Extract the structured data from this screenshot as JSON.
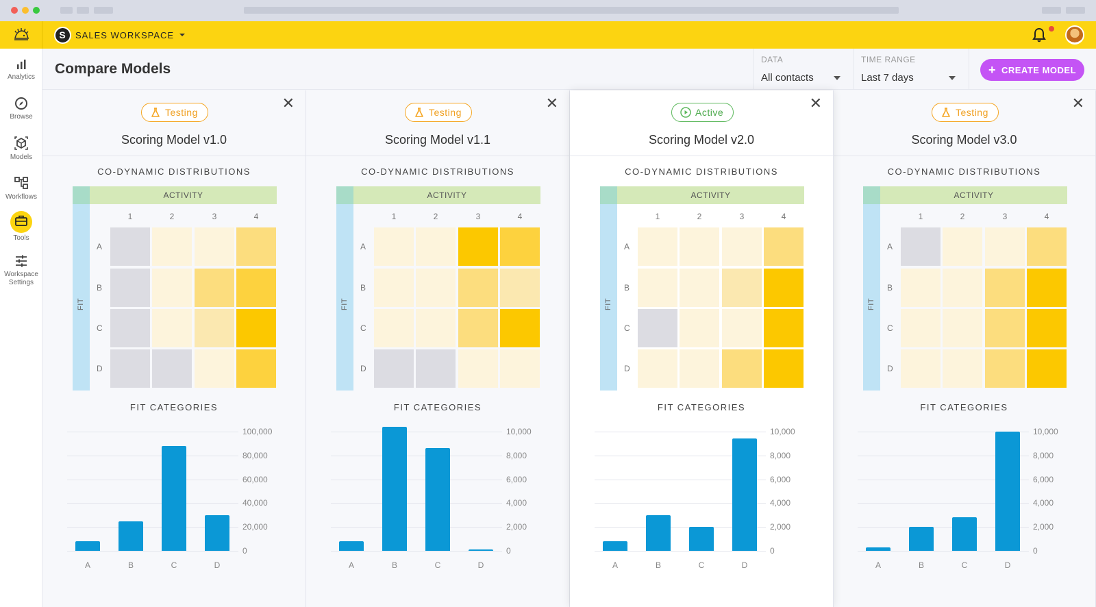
{
  "workspace": {
    "label": "SALES WORKSPACE",
    "badge_letter": "S"
  },
  "sidebar": {
    "items": [
      {
        "label": "Analytics",
        "icon": "bar-chart-icon"
      },
      {
        "label": "Browse",
        "icon": "compass-icon"
      },
      {
        "label": "Models",
        "icon": "cube-icon"
      },
      {
        "label": "Workflows",
        "icon": "workflow-icon"
      },
      {
        "label": "Tools",
        "icon": "toolbox-icon"
      },
      {
        "label": "Workspace Settings",
        "icon": "sliders-icon"
      }
    ]
  },
  "page": {
    "title": "Compare Models"
  },
  "filters": {
    "data": {
      "label": "DATA",
      "value": "All contacts"
    },
    "time_range": {
      "label": "TIME RANGE",
      "value": "Last 7 days"
    }
  },
  "actions": {
    "create_label": "CREATE MODEL"
  },
  "labels": {
    "distributions": "CO-DYNAMIC DISTRIBUTIONS",
    "fit_categories": "FIT CATEGORIES",
    "activity": "ACTIVITY",
    "fit": "FIT",
    "columns": [
      "1",
      "2",
      "3",
      "4"
    ],
    "rows": [
      "A",
      "B",
      "C",
      "D"
    ],
    "close": "✕"
  },
  "colors": {
    "accent": "#fcd411",
    "create_button": "#c454f5",
    "bar": "#0b98d6",
    "testing": "#f5a623",
    "active": "#5cb85c",
    "heat_levels": [
      "#dcdce2",
      "#fdf4dc",
      "#fbe8b0",
      "#fcdd7e",
      "#fdd23e",
      "#fcc800"
    ]
  },
  "models": [
    {
      "status": "Testing",
      "status_type": "testing",
      "name": "Scoring Model v1.0",
      "heatmap": [
        [
          0,
          1,
          1,
          3
        ],
        [
          0,
          1,
          3,
          4
        ],
        [
          0,
          1,
          2,
          5
        ],
        [
          0,
          0,
          1,
          4
        ]
      ],
      "chart_data": {
        "type": "bar",
        "categories": [
          "A",
          "B",
          "C",
          "D"
        ],
        "values": [
          8000,
          25000,
          88000,
          30000
        ],
        "yticks": [
          "100,000",
          "80,000",
          "60,000",
          "40,000",
          "20,000",
          "0"
        ],
        "ylim": [
          0,
          100000
        ]
      }
    },
    {
      "status": "Testing",
      "status_type": "testing",
      "name": "Scoring Model v1.1",
      "heatmap": [
        [
          1,
          1,
          5,
          4
        ],
        [
          1,
          1,
          3,
          2
        ],
        [
          1,
          1,
          3,
          5
        ],
        [
          0,
          0,
          1,
          1
        ]
      ],
      "chart_data": {
        "type": "bar",
        "categories": [
          "A",
          "B",
          "C",
          "D"
        ],
        "values": [
          800,
          10400,
          8600,
          80
        ],
        "yticks": [
          "10,000",
          "8,000",
          "6,000",
          "4,000",
          "2,000",
          "0"
        ],
        "ylim": [
          0,
          10000
        ]
      }
    },
    {
      "status": "Active",
      "status_type": "active",
      "name": "Scoring Model v2.0",
      "heatmap": [
        [
          1,
          1,
          1,
          3
        ],
        [
          1,
          1,
          2,
          5
        ],
        [
          0,
          1,
          1,
          5
        ],
        [
          1,
          1,
          3,
          5
        ]
      ],
      "chart_data": {
        "type": "bar",
        "categories": [
          "A",
          "B",
          "C",
          "D"
        ],
        "values": [
          800,
          3000,
          2000,
          9400
        ],
        "yticks": [
          "10,000",
          "8,000",
          "6,000",
          "4,000",
          "2,000",
          "0"
        ],
        "ylim": [
          0,
          10000
        ]
      }
    },
    {
      "status": "Testing",
      "status_type": "testing",
      "name": "Scoring Model v3.0",
      "heatmap": [
        [
          0,
          1,
          1,
          3
        ],
        [
          1,
          1,
          3,
          5
        ],
        [
          1,
          1,
          3,
          5
        ],
        [
          1,
          1,
          3,
          5
        ]
      ],
      "chart_data": {
        "type": "bar",
        "categories": [
          "A",
          "B",
          "C",
          "D"
        ],
        "values": [
          300,
          2000,
          2800,
          10000
        ],
        "yticks": [
          "10,000",
          "8,000",
          "6,000",
          "4,000",
          "2,000",
          "0"
        ],
        "ylim": [
          0,
          10000
        ]
      }
    }
  ]
}
